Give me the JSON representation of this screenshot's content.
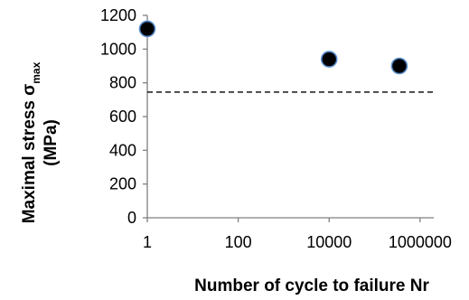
{
  "chart_data": {
    "type": "scatter",
    "title": "",
    "xlabel": "Number of cycle to failure Nr",
    "ylabel": {
      "line1_prefix": "Maximal stress σ",
      "line1_subscript": "max",
      "line2": "(MPa)"
    },
    "x_scale": "log",
    "xlim": [
      1,
      2000000
    ],
    "ylim": [
      0,
      1200
    ],
    "x_ticks": [
      1,
      100,
      10000,
      1000000
    ],
    "x_tick_labels": [
      "1",
      "100",
      "10000",
      "1000000"
    ],
    "y_ticks": [
      0,
      200,
      400,
      600,
      800,
      1000,
      1200
    ],
    "y_tick_labels": [
      "0",
      "200",
      "400",
      "600",
      "800",
      "1000",
      "1200"
    ],
    "grid": false,
    "legend": "none",
    "series": [
      {
        "marker": "circle",
        "color": "#000000",
        "edge_color": "#5b8fd0",
        "points": [
          {
            "x": 1,
            "y": 1120
          },
          {
            "x": 10000,
            "y": 940
          },
          {
            "x": 350000,
            "y": 900
          }
        ]
      }
    ],
    "reference_lines": [
      {
        "orientation": "horizontal",
        "y": 745,
        "style": "dashed",
        "color": "#000000"
      }
    ]
  }
}
